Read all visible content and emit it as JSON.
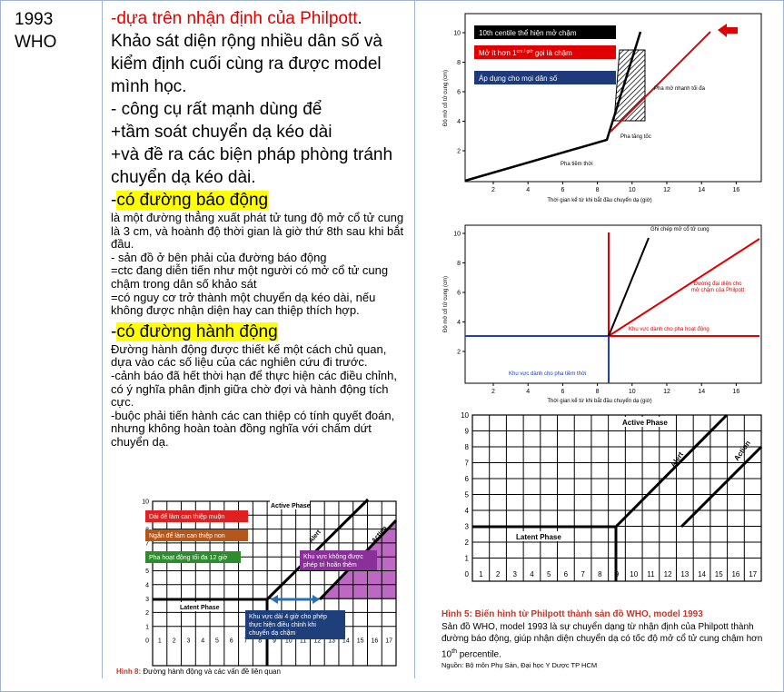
{
  "cells": {
    "year": "1993",
    "org": "WHO"
  },
  "intro": {
    "dash": "-",
    "source": "dựa trên nhận định của Philpott",
    "period": "."
  },
  "paragraphs": [
    "Khảo sát diện rộng nhiều dân số và kiểm định cuối cùng ra được model mình học.",
    "- công cụ rất mạnh dùng để",
    "+tầm soát chuyển dạ kéo dài",
    "+và đề ra các biện pháp phòng tránh chuyển dạ kéo dài."
  ],
  "alert": {
    "dash": "-",
    "heading": "có đường báo động",
    "notes": [
      "là một đường thẳng xuất phát tử tung độ mở cổ tử cung là 3 cm, và hoành độ thời gian là giờ thứ 8th sau khi bắt đầu.",
      "- sản đồ ở bên phải của đường báo động",
      "=ctc đang diễn tiến như một người có mở cổ tử cung chậm trong dân số khảo sát",
      "=có nguy cơ trở thành một chuyển dạ kéo dài, nếu không được nhận diện hay can thiệp thích hợp."
    ]
  },
  "action": {
    "dash": "-",
    "heading": "có đường hành động",
    "notes": [
      "Đường hành động được thiết kế một cách chủ quan, dựa vào các số liệu của các nghiên cứu đi trước.",
      "-cảnh báo đã hết thời hạn để thực hiện các điều chỉnh, có ý nghĩa phân định giữa chờ đợi và hành động tích cực.",
      "-buộc phải tiến hành các can thiệp có tính quyết đoán, nhưng không hoàn toàn đồng nghĩa với chấm dứt chuyển dạ."
    ]
  },
  "philpott": {
    "yticks": [
      2,
      4,
      6,
      8,
      10
    ],
    "xticks": [
      2,
      4,
      6,
      8,
      10,
      12,
      14,
      16
    ],
    "ylabel": "Độ mở cổ tử cung (cm)",
    "xlabel": "Thời gian kể từ khi bắt đầu chuyển dạ (giờ)",
    "legend": {
      "black": "10th centile thể hiện mở chậm",
      "red_pre": "Mở ít hơn 1",
      "red_sup": "cm / giờ",
      "red_post": " gọi là chậm",
      "blue": "Áp dụng cho mọi dân số"
    },
    "labels": {
      "max": "Pha mở nhanh tối đa",
      "accel": "Pha tăng tốc",
      "latent": "Pha tiềm thời"
    }
  },
  "derivation": {
    "yticks": [
      2,
      4,
      6,
      8,
      10
    ],
    "xticks": [
      2,
      4,
      6,
      8,
      10,
      12,
      14,
      16
    ],
    "ylabel": "Độ mở cổ tử cung (cm)",
    "xlabel": "Thời gian kể từ khi bắt đầu chuyển dạ (giờ)",
    "labels": {
      "record": "Ghi chép mở cổ tử cung",
      "slow1": "Đường đại diện cho",
      "slow2": "mở chậm của Philpott",
      "active": "Khu vực dành cho pha hoạt động",
      "latent": "Khu vực dành cho pha tiềm thời"
    }
  },
  "who": {
    "yticks": [
      10,
      9,
      8,
      7,
      6,
      5,
      4,
      3,
      2,
      1,
      0
    ],
    "xticks": [
      1,
      2,
      3,
      4,
      5,
      6,
      7,
      8,
      9,
      10,
      11,
      12,
      13,
      14,
      15,
      16,
      17
    ],
    "labels": {
      "active": "Active Phase",
      "alert": "Alert",
      "action": "Action",
      "latent": "Latent Phase"
    }
  },
  "action_chart": {
    "yticks": [
      10,
      9,
      8,
      7,
      6,
      5,
      4,
      3,
      2,
      1,
      0
    ],
    "xticks": [
      1,
      2,
      3,
      4,
      5,
      6,
      7,
      8,
      9,
      10,
      11,
      12,
      13,
      14,
      15,
      16,
      17
    ],
    "labels": {
      "active": "Active Phase",
      "alert": "Alert",
      "action": "Action",
      "latent": "Latent Phase",
      "late": "Dài để làm can thiệp muộn",
      "early": "Ngắn để làm can thiệp non",
      "max": "Pha hoạt động tối đa 12 giờ",
      "nodelay1": "Khu vực không được",
      "nodelay2": "phép trì hoãn thêm",
      "window1": "Khu vực dài 4 giờ cho phép",
      "window2": "thực hiện điều chỉnh khi",
      "window3": "chuyển dạ chậm"
    },
    "caption_label": "Hình 8:",
    "caption": " Đường hành động và các vấn đề liên quan"
  },
  "caption": {
    "title": "Hình 5: Biến hình từ Philpott thành sản đồ WHO, model 1993",
    "body_pre": "Sản đồ WHO, model 1993 là sự chuyển dạng từ nhận định của Philpott thành đường báo động, giúp nhận diện chuyển dạ có tốc độ mở cổ tử cung chậm hơn 10",
    "body_sup": "th",
    "body_post": " percentile.",
    "source": "Nguồn: Bộ môn Phụ Sản, Đại học Y Dược TP HCM"
  }
}
